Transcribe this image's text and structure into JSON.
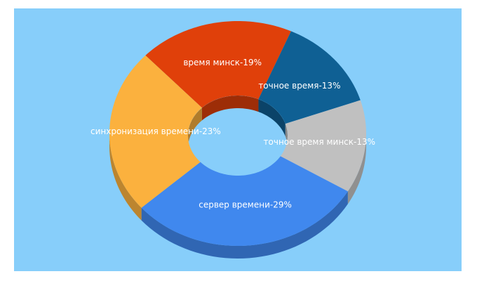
{
  "chart_data": {
    "type": "donut3d",
    "values": [
      19,
      13,
      13,
      29,
      23
    ],
    "value_labels": [
      "время минск-19%",
      "точное время-13%",
      "точное время минск-13%",
      "сервер времени-29%",
      "синхронизация времени-23%"
    ],
    "colors": [
      "#e0400a",
      "#0f6094",
      "#c0c0c0",
      "#4088ee",
      "#fbb13e"
    ]
  }
}
